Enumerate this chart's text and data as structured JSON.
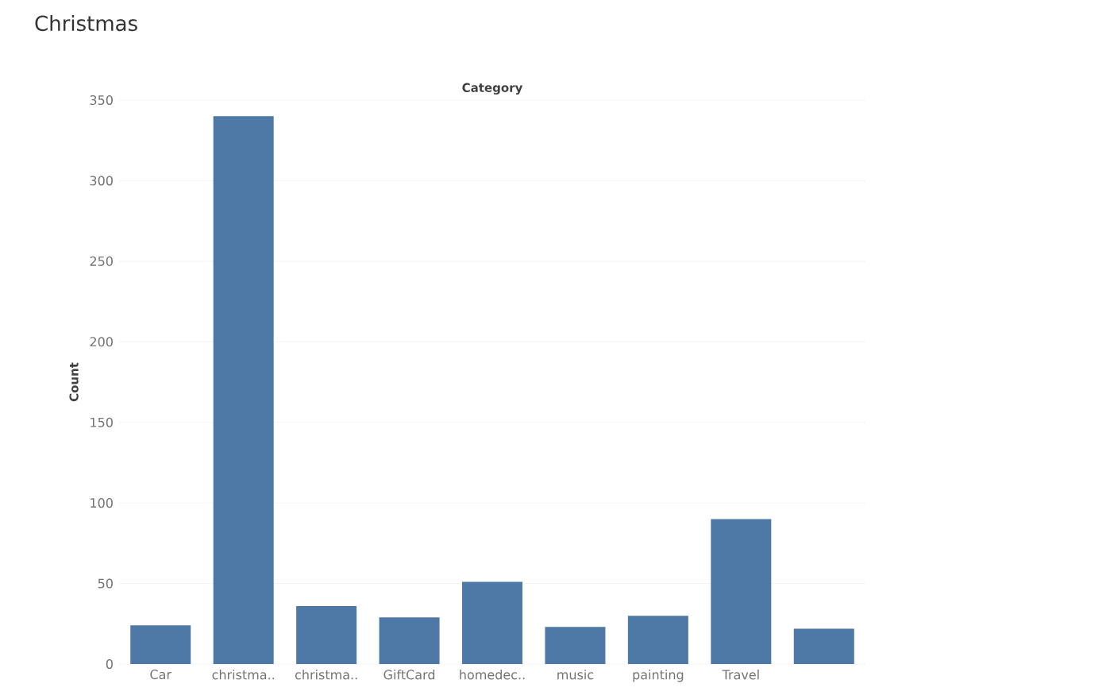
{
  "chart_data": {
    "type": "bar",
    "title": "Christmas",
    "xlabel": "Category",
    "ylabel": "Count",
    "categories": [
      "Car",
      "christma..",
      "christma..",
      "GiftCard",
      "homedec..",
      "music",
      "painting",
      "Travel",
      null
    ],
    "values": [
      24,
      340,
      36,
      29,
      51,
      23,
      30,
      90,
      22
    ],
    "color": "#4e79a7",
    "ylim": [
      0,
      350
    ],
    "yticks": [
      0,
      50,
      100,
      150,
      200,
      250,
      300,
      350
    ],
    "grid": "y"
  }
}
